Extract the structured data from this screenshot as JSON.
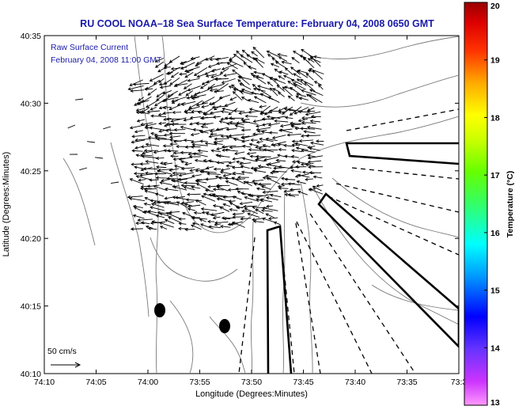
{
  "title": "RU COOL  NOAA–18  Sea Surface Temperature:  February 04, 2008 0650 GMT",
  "overlay": {
    "line1": "Raw Surface Current",
    "line2": "February 04, 2008 11:00 GMT"
  },
  "scale_label": "50 cm/s",
  "axes": {
    "xlabel": "Longitude (Degrees:Minutes)",
    "ylabel": "Latitude (Degrees:Minutes)",
    "x_ticks": [
      "74:10",
      "74:05",
      "74:00",
      "73:55",
      "73:50",
      "73:45",
      "73:40",
      "73:35",
      "73:3"
    ],
    "y_ticks": [
      "40:35",
      "40:30",
      "40:25",
      "40:20",
      "40:15",
      "40:10"
    ]
  },
  "colorbar": {
    "label": "Temperature (°C)",
    "ticks": [
      "20",
      "19",
      "18",
      "17",
      "16",
      "15",
      "14",
      "13"
    ],
    "min": 13,
    "max": 20
  },
  "colors": {
    "title": "#1a1aa8",
    "overlay_text": "#1a1aa8",
    "axis": "#000000",
    "contour": "#7a7a7a"
  }
}
